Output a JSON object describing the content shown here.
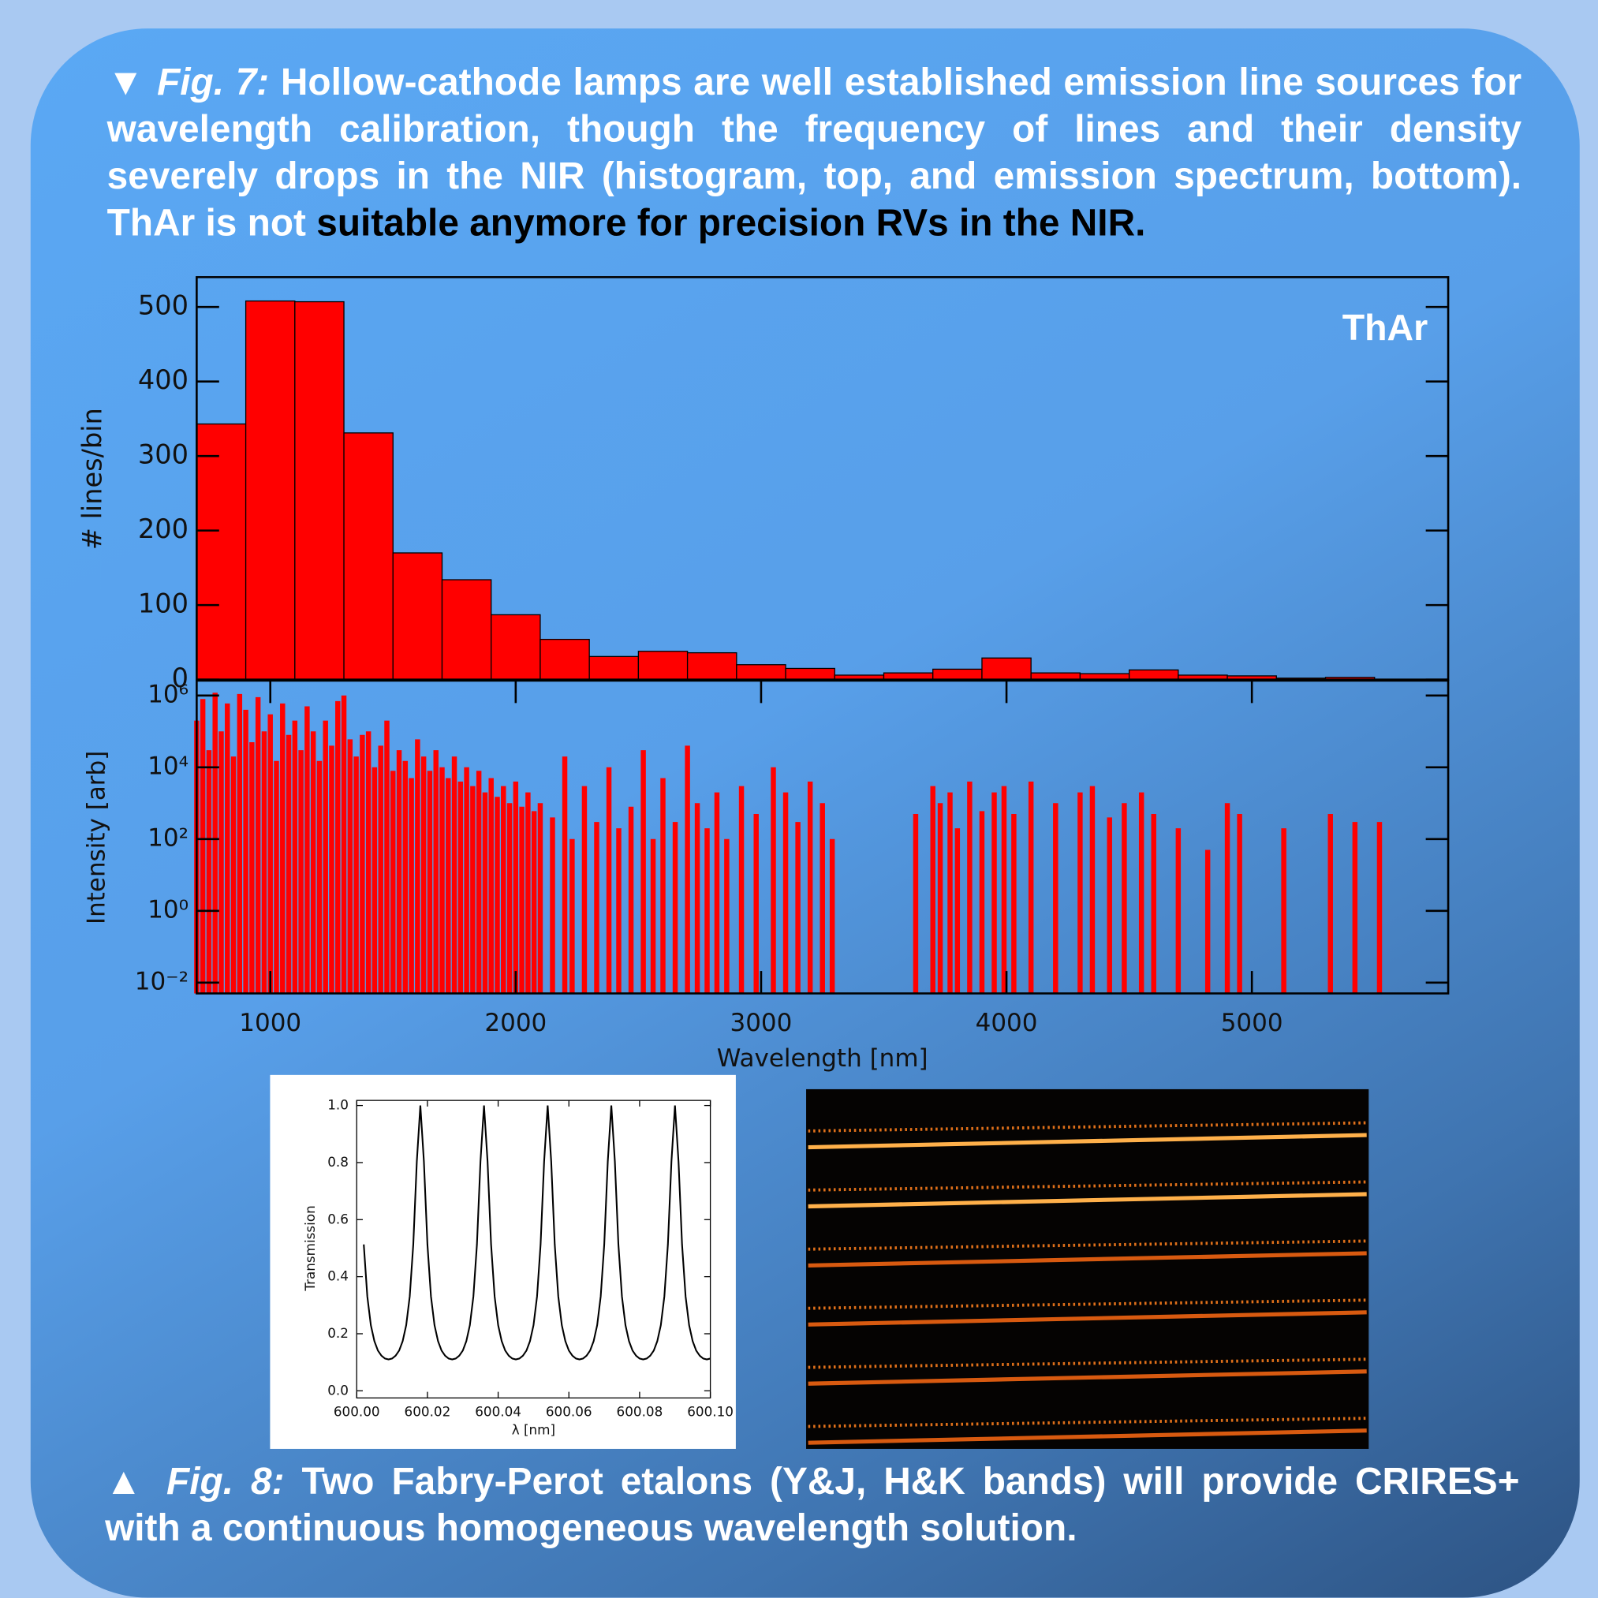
{
  "fig7_caption": {
    "marker": "▼",
    "label": "Fig. 7:",
    "text": "Hollow-cathode lamps are well established emission line sources for wavelength calibration, though the frequency of lines and their density severely drops in the NIR (histogram, top, and emission spectrum, bottom). ThAr is not",
    "highlight": "suitable anymore for precision RVs in the NIR."
  },
  "fig8_caption": {
    "marker": "▲",
    "label": "Fig. 8:",
    "text": "Two Fabry-Perot etalons (Y&J, H&K bands) will provide CRIRES+ with a continuous homogeneous wavelength solution."
  },
  "chart_data": [
    {
      "type": "histogram",
      "annotation": "ThAr",
      "ylabel": "# lines/bin",
      "color": "#ff0000",
      "bins": [
        700,
        900,
        1100,
        1300,
        1500,
        1700,
        1900,
        2100,
        2300,
        2500,
        2700,
        2900,
        3100,
        3300,
        3500,
        3700,
        3900,
        4100,
        4300,
        4500,
        4700,
        4900,
        5100,
        5300,
        5500
      ],
      "values": [
        343,
        508,
        507,
        331,
        170,
        134,
        87,
        54,
        31,
        38,
        36,
        20,
        15,
        6,
        9,
        14,
        29,
        9,
        8,
        13,
        6,
        5,
        2,
        3
      ],
      "xlim": [
        700,
        5800
      ],
      "ylim": [
        0,
        540
      ],
      "yticks": [
        0,
        100,
        200,
        300,
        400,
        500
      ]
    },
    {
      "type": "stem",
      "xlabel": "Wavelength [nm]",
      "ylabel": "Intensity [arb]",
      "color": "#ff0000",
      "ylog": true,
      "x": [
        700,
        725,
        750,
        775,
        800,
        825,
        850,
        875,
        900,
        925,
        950,
        975,
        1000,
        1025,
        1050,
        1075,
        1100,
        1125,
        1150,
        1175,
        1200,
        1225,
        1250,
        1275,
        1300,
        1325,
        1350,
        1375,
        1400,
        1425,
        1450,
        1475,
        1500,
        1525,
        1550,
        1575,
        1600,
        1625,
        1650,
        1675,
        1700,
        1725,
        1750,
        1775,
        1800,
        1825,
        1850,
        1875,
        1900,
        1925,
        1950,
        1975,
        2000,
        2025,
        2050,
        2075,
        2100,
        2150,
        2200,
        2230,
        2280,
        2330,
        2380,
        2420,
        2470,
        2520,
        2560,
        2600,
        2650,
        2700,
        2740,
        2780,
        2820,
        2860,
        2920,
        2980,
        3050,
        3100,
        3150,
        3200,
        3250,
        3290,
        3630,
        3700,
        3730,
        3770,
        3800,
        3850,
        3900,
        3950,
        3990,
        4030,
        4100,
        4200,
        4300,
        4350,
        4420,
        4480,
        4550,
        4600,
        4700,
        4820,
        4900,
        4950,
        5130,
        5320,
        5420,
        5520
      ],
      "values": [
        200000,
        800000,
        30000,
        1200000,
        100000,
        600000,
        20000,
        1100000,
        400000,
        50000,
        900000,
        100000,
        300000,
        15000,
        600000,
        80000,
        200000,
        30000,
        500000,
        100000,
        15000,
        200000,
        40000,
        700000,
        1000000,
        60000,
        20000,
        80000,
        100000,
        10000,
        40000,
        200000,
        8000,
        30000,
        15000,
        5000,
        60000,
        20000,
        8000,
        30000,
        10000,
        5000,
        20000,
        4000,
        10000,
        3000,
        8000,
        2000,
        5000,
        1500,
        3000,
        1000,
        4000,
        800,
        2000,
        600,
        1000,
        400,
        20000,
        100,
        3000,
        300,
        10000,
        200,
        800,
        30000,
        100,
        5000,
        300,
        40000,
        1000,
        200,
        2000,
        100,
        3000,
        500,
        10000,
        2000,
        300,
        4000,
        1000,
        100,
        500,
        3000,
        1000,
        2000,
        200,
        4000,
        600,
        2000,
        3000,
        500,
        4000,
        1000,
        2000,
        3000,
        400,
        1000,
        2000,
        500,
        200,
        50,
        1000,
        500,
        200,
        500,
        300,
        300
      ],
      "xlim": [
        700,
        5800
      ],
      "xticks": [
        1000,
        2000,
        3000,
        4000,
        5000
      ],
      "ylim": [
        0.005,
        2600000
      ],
      "yticks": [
        {
          "value": 0.01,
          "label": "10⁻²"
        },
        {
          "value": 1,
          "label": "10⁰"
        },
        {
          "value": 100,
          "label": "10²"
        },
        {
          "value": 10000,
          "label": "10⁴"
        },
        {
          "value": 1000000,
          "label": "10⁶"
        }
      ]
    },
    {
      "type": "line",
      "xlabel": "λ [nm]",
      "ylabel": "Transmission",
      "color": "#000000",
      "x": [
        600.002,
        600.003,
        600.004,
        600.005,
        600.006,
        600.007,
        600.008,
        600.009,
        600.01,
        600.011,
        600.012,
        600.013,
        600.014,
        600.015,
        600.016,
        600.017,
        600.018,
        600.019,
        600.02,
        600.021,
        600.022,
        600.023,
        600.024,
        600.025,
        600.026,
        600.027,
        600.028,
        600.029,
        600.03,
        600.031,
        600.032,
        600.033,
        600.034,
        600.035,
        600.036,
        600.037,
        600.038,
        600.039,
        600.04,
        600.041,
        600.042,
        600.043,
        600.044,
        600.045,
        600.046,
        600.047,
        600.048,
        600.049,
        600.05,
        600.051,
        600.052,
        600.053,
        600.054,
        600.055,
        600.056,
        600.057,
        600.058,
        600.059,
        600.06,
        600.061,
        600.062,
        600.063,
        600.064,
        600.065,
        600.066,
        600.067,
        600.068,
        600.069,
        600.07,
        600.071,
        600.072,
        600.073,
        600.074,
        600.075,
        600.076,
        600.077,
        600.078,
        600.079,
        600.08,
        600.081,
        600.082,
        600.083,
        600.084,
        600.085,
        600.086,
        600.087,
        600.088,
        600.089,
        600.09,
        600.091,
        600.092,
        600.093,
        600.094,
        600.095,
        600.096,
        600.097,
        600.098,
        600.099,
        600.1
      ],
      "values": [
        0.513,
        0.331,
        0.23,
        0.174,
        0.141,
        0.123,
        0.113,
        0.11,
        0.113,
        0.123,
        0.141,
        0.174,
        0.23,
        0.331,
        0.513,
        0.804,
        1,
        0.804,
        0.513,
        0.331,
        0.23,
        0.174,
        0.141,
        0.123,
        0.113,
        0.11,
        0.113,
        0.123,
        0.141,
        0.174,
        0.23,
        0.331,
        0.513,
        0.804,
        1,
        0.804,
        0.513,
        0.331,
        0.23,
        0.174,
        0.141,
        0.123,
        0.113,
        0.11,
        0.113,
        0.123,
        0.141,
        0.174,
        0.23,
        0.331,
        0.513,
        0.804,
        1,
        0.804,
        0.513,
        0.331,
        0.23,
        0.174,
        0.141,
        0.123,
        0.113,
        0.11,
        0.113,
        0.123,
        0.141,
        0.174,
        0.23,
        0.331,
        0.513,
        0.804,
        1,
        0.804,
        0.513,
        0.331,
        0.23,
        0.174,
        0.141,
        0.123,
        0.113,
        0.11,
        0.113,
        0.123,
        0.141,
        0.174,
        0.23,
        0.331,
        0.513,
        0.804,
        1,
        0.804,
        0.513,
        0.331,
        0.23,
        0.174,
        0.141,
        0.123,
        0.113,
        0.11,
        0.113
      ],
      "xlim": [
        600.0,
        600.1
      ],
      "xticks": [
        {
          "value": 600.0,
          "label": "600.00"
        },
        {
          "value": 600.02,
          "label": "600.02"
        },
        {
          "value": 600.04,
          "label": "600.04"
        },
        {
          "value": 600.06,
          "label": "600.06"
        },
        {
          "value": 600.08,
          "label": "600.08"
        },
        {
          "value": 600.1,
          "label": "600.10"
        }
      ],
      "ylim": [
        0,
        1
      ],
      "yticks": [
        {
          "value": 0,
          "label": "0.0"
        },
        0.2,
        0.4,
        0.6,
        0.8,
        {
          "value": 1,
          "label": "1.0"
        }
      ]
    }
  ]
}
